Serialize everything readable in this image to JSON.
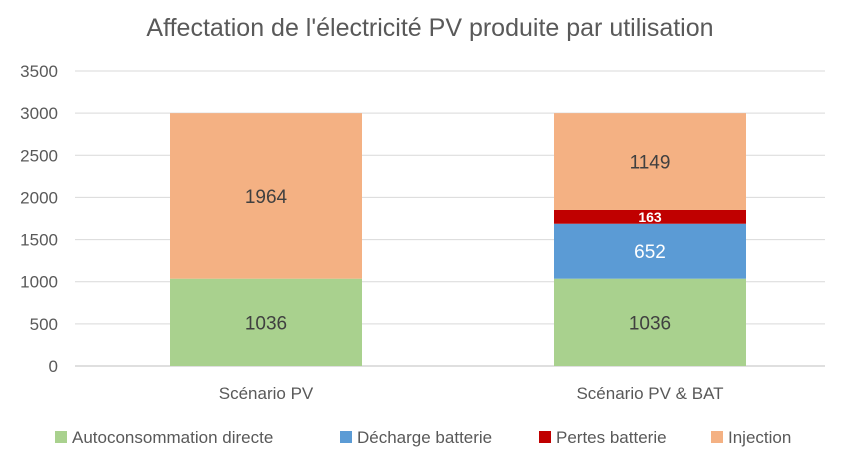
{
  "chart_data": {
    "type": "bar",
    "stacked": true,
    "title": "Affectation de l'électricité PV produite par utilisation",
    "xlabel": "",
    "ylabel": "",
    "ylim": [
      0,
      3500
    ],
    "yticks": [
      0,
      500,
      1000,
      1500,
      2000,
      2500,
      3000,
      3500
    ],
    "grid": true,
    "legend_position": "bottom",
    "categories": [
      "Scénario PV",
      "Scénario PV & BAT"
    ],
    "series": [
      {
        "name": "Autoconsommation directe",
        "color": "#a9d18e",
        "label_color": "#404040",
        "values": [
          1036,
          1036
        ]
      },
      {
        "name": "Décharge batterie",
        "color": "#5b9bd5",
        "label_color": "#ffffff",
        "values": [
          0,
          652
        ]
      },
      {
        "name": "Pertes batterie",
        "color": "#c00000",
        "label_color": "#ffffff",
        "values": [
          0,
          163
        ]
      },
      {
        "name": "Injection",
        "color": "#f4b183",
        "label_color": "#404040",
        "values": [
          1964,
          1149
        ]
      }
    ]
  }
}
